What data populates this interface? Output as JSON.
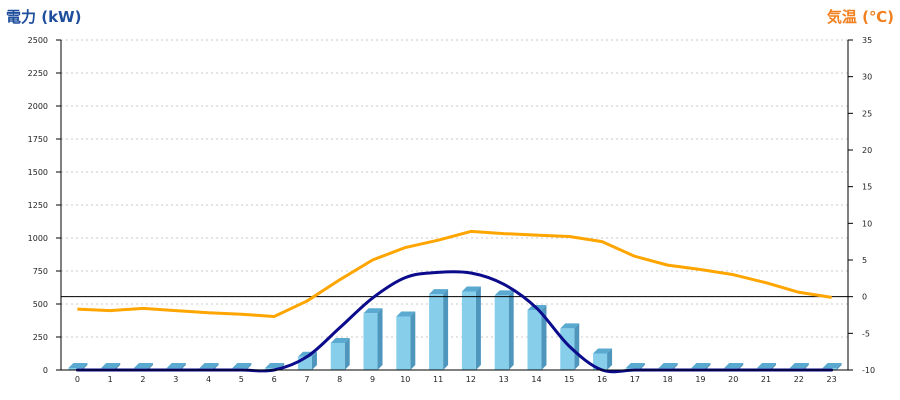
{
  "chart_data": {
    "type": "bar",
    "left_axis_title": "電力 (kW)",
    "right_axis_title": "気温 (℃)",
    "categories": [
      "0",
      "1",
      "2",
      "3",
      "4",
      "5",
      "6",
      "7",
      "8",
      "9",
      "10",
      "11",
      "12",
      "13",
      "14",
      "15",
      "16",
      "17",
      "18",
      "19",
      "20",
      "21",
      "22",
      "23"
    ],
    "y_left": {
      "min": 0,
      "max": 2500,
      "ticks": [
        0,
        250,
        500,
        750,
        1000,
        1250,
        1500,
        1750,
        2000,
        2250,
        2500
      ]
    },
    "y_right": {
      "min": -10,
      "max": 35,
      "ticks": [
        -10,
        -5,
        0,
        5,
        10,
        15,
        20,
        25,
        30,
        35
      ]
    },
    "grid": true,
    "series": [
      {
        "type": "bar",
        "axis": "left",
        "values": [
          0,
          0,
          0,
          0,
          0,
          0,
          0,
          100,
          205,
          430,
          405,
          575,
          595,
          565,
          455,
          315,
          125,
          0,
          0,
          0,
          0,
          0,
          0,
          0
        ]
      },
      {
        "type": "line",
        "axis": "left",
        "values": [
          0,
          0,
          0,
          0,
          0,
          0,
          0,
          100,
          320,
          545,
          700,
          740,
          735,
          650,
          470,
          180,
          0,
          0,
          0,
          0,
          0,
          0,
          0,
          0
        ]
      },
      {
        "type": "line",
        "axis": "right",
        "values": [
          -1.7,
          -1.9,
          -1.6,
          -1.9,
          -2.2,
          -2.4,
          -2.7,
          -0.6,
          2.3,
          5.0,
          6.7,
          7.7,
          8.9,
          8.6,
          8.4,
          8.2,
          7.5,
          5.5,
          4.3,
          3.7,
          3.0,
          1.9,
          0.6,
          -0.1
        ]
      }
    ],
    "reference_line": {
      "axis": "right",
      "value": 0
    },
    "colors": {
      "left_title": "#1f4e9c",
      "right_title": "#f08020",
      "bar_front": "#87ceeb",
      "bar_top": "#5aa9d0",
      "bar_side": "#4f96bd",
      "power_line": "#0b0b8c",
      "temp_line": "#ffa500",
      "grid": "#c8c8c8",
      "axis": "#000000"
    }
  }
}
